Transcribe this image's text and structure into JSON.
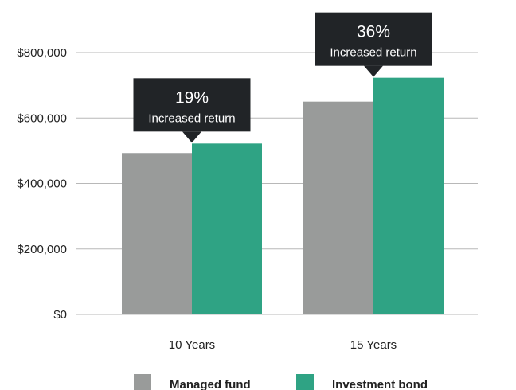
{
  "chart_data": {
    "type": "bar",
    "categories": [
      "10 Years",
      "15 Years"
    ],
    "series": [
      {
        "name": "Managed fund",
        "values": [
          493000,
          650000
        ],
        "color": "#999b9a"
      },
      {
        "name": "Investment bond",
        "values": [
          522000,
          723000
        ],
        "color": "#2fa384"
      }
    ],
    "ylim": [
      0,
      800000
    ],
    "yticks": [
      {
        "value": 0,
        "label": "$0"
      },
      {
        "value": 200000,
        "label": "$200,000"
      },
      {
        "value": 400000,
        "label": "$400,000"
      },
      {
        "value": 600000,
        "label": "$600,000"
      },
      {
        "value": 800000,
        "label": "$800,000"
      }
    ],
    "annotations": [
      {
        "category": "10 Years",
        "value": "19%",
        "text": "Increased return"
      },
      {
        "category": "15 Years",
        "value": "36%",
        "text": "Increased return"
      }
    ],
    "grid": true,
    "legend_position": "bottom",
    "callout_color": "#212427",
    "gridline_color": "#b8b8b8"
  }
}
